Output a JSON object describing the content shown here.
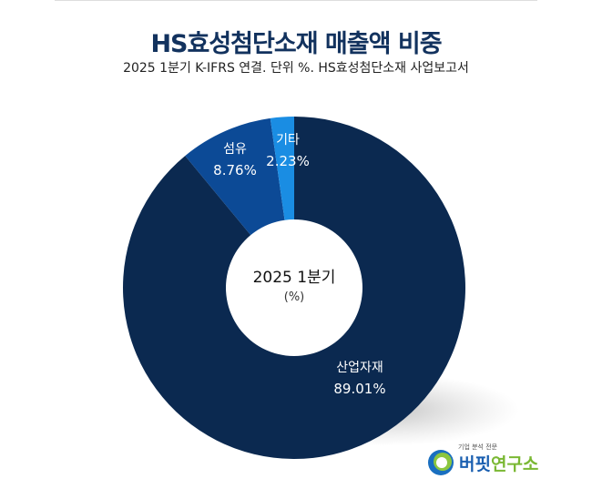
{
  "chart_data": {
    "type": "pie",
    "variant": "donut",
    "title": "HS효성첨단소재 매출액 비중",
    "subtitle": "2025 1분기 K-IFRS 연결. 단위 %. HS효성첨단소재 사업보고서",
    "center_label": "2025 1분기",
    "center_unit": "(%)",
    "categories": [
      "산업자재",
      "섬유",
      "기타"
    ],
    "values": [
      89.01,
      8.76,
      2.23
    ],
    "value_labels": [
      "89.01%",
      "8.76%",
      "2.23%"
    ],
    "colors": [
      "#0b2950",
      "#0c4a96",
      "#1a8de3"
    ]
  },
  "logo": {
    "tagline": "기업 분석 전문",
    "name_a": "버핏",
    "name_b": "연구소"
  }
}
